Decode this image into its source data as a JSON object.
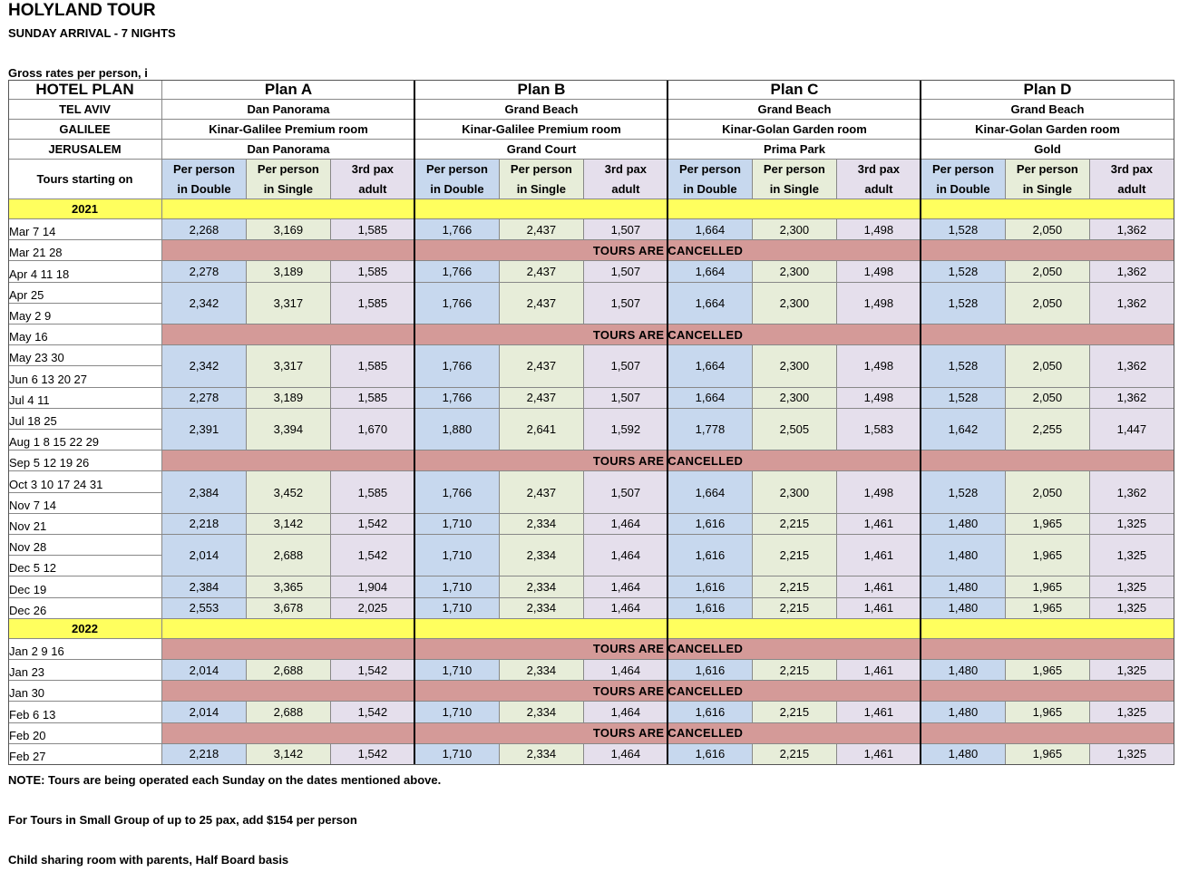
{
  "title": "HOLYLAND TOUR",
  "subtitle": "SUNDAY ARRIVAL - 7 NIGHTS",
  "gross_note": "Gross rates per person, i",
  "table": {
    "corner": "HOTEL PLAN",
    "cities": [
      "TEL AVIV",
      "GALILEE",
      "JERUSALEM"
    ],
    "tours_label": "Tours starting on",
    "plans": [
      {
        "name": "Plan A",
        "hotels": [
          "Dan Panorama",
          "Kinar-Galilee Premium room",
          "Dan Panorama"
        ]
      },
      {
        "name": "Plan B",
        "hotels": [
          "Grand Beach",
          "Kinar-Galilee Premium room",
          "Grand Court"
        ]
      },
      {
        "name": "Plan C",
        "hotels": [
          "Grand Beach",
          "Kinar-Golan Garden room",
          "Prima Park"
        ]
      },
      {
        "name": "Plan D",
        "hotels": [
          "Grand Beach",
          "Kinar-Golan Garden room",
          "Gold"
        ]
      }
    ],
    "price_headers": [
      [
        "Per person",
        "in Double"
      ],
      [
        "Per person",
        "in Single"
      ],
      [
        "3rd pax",
        "adult"
      ]
    ],
    "rows": [
      {
        "type": "year",
        "label": "2021"
      },
      {
        "type": "price",
        "dates": [
          "Mar  7  14"
        ],
        "values": [
          "2,268",
          "3,169",
          "1,585",
          "1,766",
          "2,437",
          "1,507",
          "1,664",
          "2,300",
          "1,498",
          "1,528",
          "2,050",
          "1,362"
        ]
      },
      {
        "type": "cancel",
        "dates": [
          "Mar  21  28"
        ],
        "label": "TOURS ARE CANCELLED"
      },
      {
        "type": "price",
        "dates": [
          "Apr 4  11  18"
        ],
        "values": [
          "2,278",
          "3,189",
          "1,585",
          "1,766",
          "2,437",
          "1,507",
          "1,664",
          "2,300",
          "1,498",
          "1,528",
          "2,050",
          "1,362"
        ]
      },
      {
        "type": "price",
        "dates": [
          "Apr 25",
          "May 2  9"
        ],
        "values": [
          "2,342",
          "3,317",
          "1,585",
          "1,766",
          "2,437",
          "1,507",
          "1,664",
          "2,300",
          "1,498",
          "1,528",
          "2,050",
          "1,362"
        ]
      },
      {
        "type": "cancel",
        "dates": [
          "May 16"
        ],
        "label": "TOURS ARE CANCELLED"
      },
      {
        "type": "price",
        "dates": [
          "May 23  30",
          "Jun 6  13  20  27"
        ],
        "values": [
          "2,342",
          "3,317",
          "1,585",
          "1,766",
          "2,437",
          "1,507",
          "1,664",
          "2,300",
          "1,498",
          "1,528",
          "2,050",
          "1,362"
        ]
      },
      {
        "type": "price",
        "dates": [
          "Jul 4  11"
        ],
        "values": [
          "2,278",
          "3,189",
          "1,585",
          "1,766",
          "2,437",
          "1,507",
          "1,664",
          "2,300",
          "1,498",
          "1,528",
          "2,050",
          "1,362"
        ]
      },
      {
        "type": "price",
        "dates": [
          "Jul 18  25",
          "Aug 1  8  15  22  29"
        ],
        "values": [
          "2,391",
          "3,394",
          "1,670",
          "1,880",
          "2,641",
          "1,592",
          "1,778",
          "2,505",
          "1,583",
          "1,642",
          "2,255",
          "1,447"
        ]
      },
      {
        "type": "cancel",
        "dates": [
          "Sep 5  12  19  26"
        ],
        "label": "TOURS ARE CANCELLED"
      },
      {
        "type": "price",
        "dates": [
          "Oct  3  10  17  24  31",
          "Nov  7  14"
        ],
        "values": [
          "2,384",
          "3,452",
          "1,585",
          "1,766",
          "2,437",
          "1,507",
          "1,664",
          "2,300",
          "1,498",
          "1,528",
          "2,050",
          "1,362"
        ]
      },
      {
        "type": "price",
        "dates": [
          "Nov  21"
        ],
        "values": [
          "2,218",
          "3,142",
          "1,542",
          "1,710",
          "2,334",
          "1,464",
          "1,616",
          "2,215",
          "1,461",
          "1,480",
          "1,965",
          "1,325"
        ]
      },
      {
        "type": "price",
        "dates": [
          "Nov 28",
          "Dec 5  12"
        ],
        "values": [
          "2,014",
          "2,688",
          "1,542",
          "1,710",
          "2,334",
          "1,464",
          "1,616",
          "2,215",
          "1,461",
          "1,480",
          "1,965",
          "1,325"
        ]
      },
      {
        "type": "price",
        "dates": [
          "Dec 19"
        ],
        "values": [
          "2,384",
          "3,365",
          "1,904",
          "1,710",
          "2,334",
          "1,464",
          "1,616",
          "2,215",
          "1,461",
          "1,480",
          "1,965",
          "1,325"
        ]
      },
      {
        "type": "price",
        "dates": [
          "Dec 26"
        ],
        "values": [
          "2,553",
          "3,678",
          "2,025",
          "1,710",
          "2,334",
          "1,464",
          "1,616",
          "2,215",
          "1,461",
          "1,480",
          "1,965",
          "1,325"
        ]
      },
      {
        "type": "year",
        "label": "2022"
      },
      {
        "type": "cancel",
        "dates": [
          "Jan 2  9  16"
        ],
        "label": "TOURS ARE CANCELLED"
      },
      {
        "type": "price",
        "dates": [
          "Jan 23"
        ],
        "values": [
          "2,014",
          "2,688",
          "1,542",
          "1,710",
          "2,334",
          "1,464",
          "1,616",
          "2,215",
          "1,461",
          "1,480",
          "1,965",
          "1,325"
        ]
      },
      {
        "type": "cancel",
        "dates": [
          "Jan 30"
        ],
        "label": "TOURS ARE CANCELLED"
      },
      {
        "type": "price",
        "dates": [
          "Feb 6  13"
        ],
        "values": [
          "2,014",
          "2,688",
          "1,542",
          "1,710",
          "2,334",
          "1,464",
          "1,616",
          "2,215",
          "1,461",
          "1,480",
          "1,965",
          "1,325"
        ]
      },
      {
        "type": "cancel",
        "dates": [
          "Feb 20"
        ],
        "label": "TOURS ARE CANCELLED"
      },
      {
        "type": "price",
        "dates": [
          "Feb 27"
        ],
        "values": [
          "2,218",
          "3,142",
          "1,542",
          "1,710",
          "2,334",
          "1,464",
          "1,616",
          "2,215",
          "1,461",
          "1,480",
          "1,965",
          "1,325"
        ]
      }
    ]
  },
  "notes": [
    "NOTE: Tours are being operated each Sunday on the dates mentioned above.",
    "For Tours in Small Group of up to 25 pax, add $154 per person",
    "Child sharing room with parents, Half Board basis"
  ],
  "colors": {
    "double_bg": "#c7d8ee",
    "single_bg": "#e7edd9",
    "third_bg": "#e5dfec",
    "year_bg": "#ffff5e",
    "cancelled_bg": "#d49a98"
  }
}
